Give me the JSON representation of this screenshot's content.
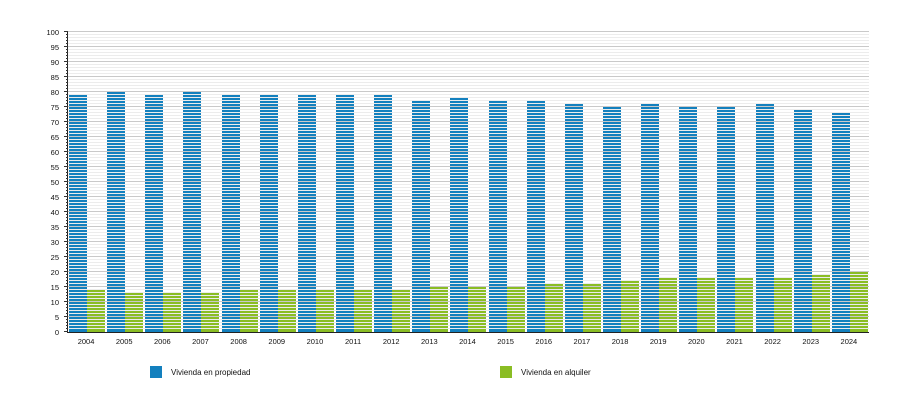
{
  "figure": {
    "legend": [
      {
        "label": "Vivienda en propiedad",
        "color": "#1380BE"
      },
      {
        "label": "Vivienda en alquiler",
        "color": "#8ABD24"
      }
    ]
  },
  "chart_data": {
    "type": "bar",
    "title": "",
    "xlabel": "",
    "ylabel": "",
    "categories": [
      "2004",
      "2005",
      "2006",
      "2007",
      "2008",
      "2009",
      "2010",
      "2011",
      "2012",
      "2013",
      "2014",
      "2015",
      "2016",
      "2017",
      "2018",
      "2019",
      "2020",
      "2021",
      "2022",
      "2023",
      "2024"
    ],
    "series": [
      {
        "name": "Vivienda en propiedad",
        "color": "#1380BE",
        "values": [
          79.5,
          80.5,
          79.5,
          80,
          79.5,
          79,
          79.5,
          79.5,
          79,
          77.5,
          78,
          77,
          77,
          76.5,
          75.5,
          76,
          75,
          75.5,
          76,
          74.5,
          73.5
        ]
      },
      {
        "name": "Vivienda en alquiler",
        "color": "#8ABD24",
        "values": [
          14,
          13,
          13,
          13.5,
          14,
          14.5,
          14.5,
          14.5,
          14,
          15,
          15,
          15.5,
          16,
          16.5,
          17.5,
          18.5,
          18.5,
          18,
          18.5,
          19,
          20.5
        ]
      }
    ],
    "ylim": [
      0,
      100
    ],
    "ytick_step": 5,
    "minor_grid_step": 1,
    "grid": true,
    "legend_position": "bottom"
  }
}
